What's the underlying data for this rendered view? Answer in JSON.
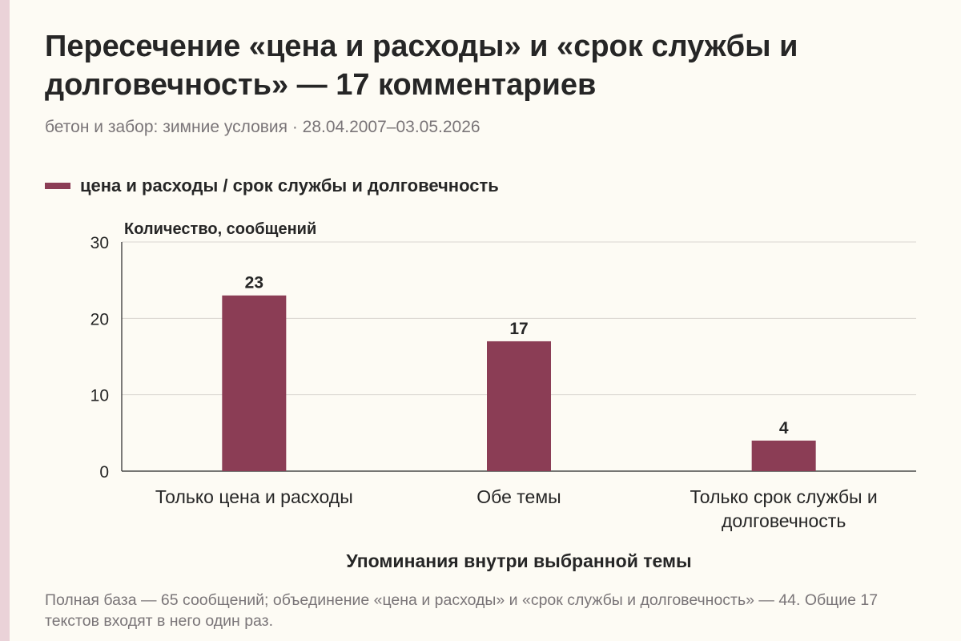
{
  "title": "Пересечение «цена и расходы» и «срок службы и долговечность» — 17 комментариев",
  "subtitle": "бетон и забор: зимние условия · 28.04.2007–03.05.2026",
  "legend": {
    "label": "цена и расходы / срок службы и долговечность"
  },
  "footnote": "Полная база — 65 сообщений; объединение «цена и расходы» и «срок службы и долговечность» — 44. Общие 17 текстов входят в него один раз.",
  "colors": {
    "bar": "#8b3d55",
    "grid": "#d9d6d0",
    "axis": "#262626",
    "background": "#fdfbf4"
  },
  "chart_data": {
    "type": "bar",
    "ylabel": "Количество, сообщений",
    "xlabel": "Упоминания внутри выбранной темы",
    "categories": [
      [
        "Только цена и расходы"
      ],
      [
        "Обе темы"
      ],
      [
        "Только срок службы и",
        "долговечность"
      ]
    ],
    "values": [
      23,
      17,
      4
    ],
    "ylim": [
      0,
      30
    ],
    "yticks": [
      0,
      10,
      20,
      30
    ],
    "grid": true,
    "series": [
      {
        "name": "цена и расходы / срок службы и долговечность",
        "values": [
          23,
          17,
          4
        ]
      }
    ]
  }
}
